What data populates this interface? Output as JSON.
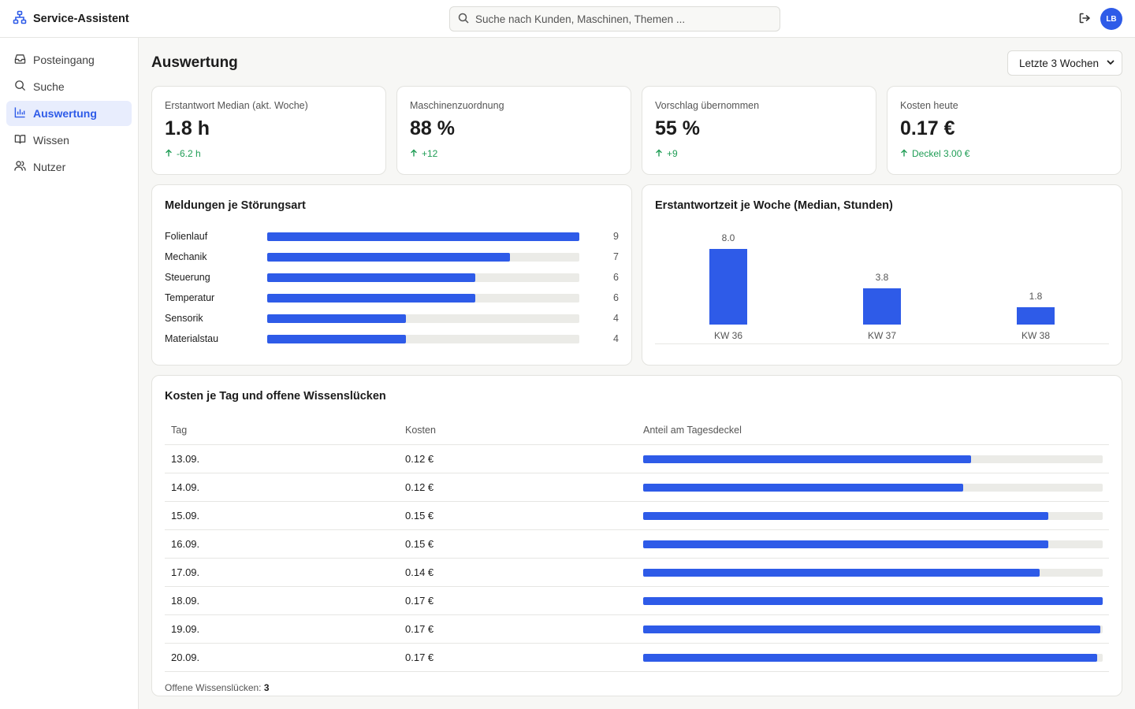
{
  "app": {
    "name": "Service-Assistent",
    "icon": "org-chart-icon"
  },
  "search": {
    "placeholder": "Suche nach Kunden, Maschinen, Themen ..."
  },
  "user": {
    "initials": "LB"
  },
  "colors": {
    "accent": "#2e5be8",
    "positive": "#1f9d55",
    "track": "#ebebe7"
  },
  "sidebar": {
    "items": [
      {
        "label": "Posteingang",
        "icon": "inbox-icon",
        "active": false
      },
      {
        "label": "Suche",
        "icon": "search-icon",
        "active": false
      },
      {
        "label": "Auswertung",
        "icon": "bar-chart-icon",
        "active": true
      },
      {
        "label": "Wissen",
        "icon": "book-icon",
        "active": false
      },
      {
        "label": "Nutzer",
        "icon": "users-icon",
        "active": false
      }
    ]
  },
  "page": {
    "title": "Auswertung",
    "range": "Letzte 3 Wochen"
  },
  "kpis": [
    {
      "label": "Erstantwort Median (akt. Woche)",
      "value": "1.8 h",
      "delta": "-6.2 h"
    },
    {
      "label": "Maschinenzuordnung",
      "value": "88 %",
      "delta": "+12"
    },
    {
      "label": "Vorschlag übernommen",
      "value": "55 %",
      "delta": "+9"
    },
    {
      "label": "Kosten heute",
      "value": "0.17 €",
      "delta": "Deckel 3.00 €"
    }
  ],
  "chart_data": [
    {
      "type": "bar",
      "orientation": "horizontal",
      "title": "Meldungen je Störungsart",
      "categories": [
        "Folienlauf",
        "Mechanik",
        "Steuerung",
        "Temperatur",
        "Sensorik",
        "Materialstau"
      ],
      "values": [
        9,
        7,
        6,
        6,
        4,
        4
      ],
      "xlim": [
        0,
        9
      ]
    },
    {
      "type": "bar",
      "title": "Erstantwortzeit je Woche (Median, Stunden)",
      "categories": [
        "KW 36",
        "KW 37",
        "KW 38"
      ],
      "values": [
        8.0,
        3.8,
        1.8
      ],
      "value_labels": [
        "8.0",
        "3.8",
        "1.8"
      ],
      "ylim": [
        0,
        8.0
      ]
    }
  ],
  "costs": {
    "title": "Kosten je Tag und offene Wissenslücken",
    "columns": [
      "Tag",
      "Kosten",
      "Anteil am Tagesdeckel"
    ],
    "rows": [
      {
        "day": "13.09.",
        "cost": "0.12 €",
        "share": 0.713
      },
      {
        "day": "14.09.",
        "cost": "0.12 €",
        "share": 0.696
      },
      {
        "day": "15.09.",
        "cost": "0.15 €",
        "share": 0.881
      },
      {
        "day": "16.09.",
        "cost": "0.15 €",
        "share": 0.881
      },
      {
        "day": "17.09.",
        "cost": "0.14 €",
        "share": 0.862
      },
      {
        "day": "18.09.",
        "cost": "0.17 €",
        "share": 1.0
      },
      {
        "day": "19.09.",
        "cost": "0.17 €",
        "share": 0.995
      },
      {
        "day": "20.09.",
        "cost": "0.17 €",
        "share": 0.988
      }
    ],
    "open_gaps_label": "Offene Wissenslücken:",
    "open_gaps_value": "3"
  }
}
